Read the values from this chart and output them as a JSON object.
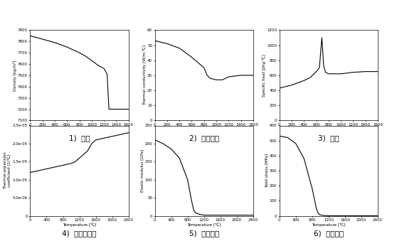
{
  "subplots": [
    {
      "label": "1)  밀도",
      "xlabel": "Temperature [℃]",
      "ylabel": "Density [kg/m³]",
      "xlim": [
        0,
        1600
      ],
      "ylim": [
        7100,
        7900
      ],
      "yticks": [
        7100,
        7200,
        7300,
        7400,
        7500,
        7600,
        7700,
        7800,
        7900
      ],
      "xticks": [
        0,
        200,
        400,
        600,
        800,
        1000,
        1200,
        1400,
        1600
      ],
      "x": [
        0,
        200,
        400,
        600,
        800,
        900,
        1000,
        1100,
        1200,
        1250,
        1280,
        1350,
        1400,
        1500,
        1600
      ],
      "y": [
        7850,
        7820,
        7790,
        7750,
        7700,
        7670,
        7630,
        7590,
        7560,
        7510,
        7200,
        7200,
        7200,
        7200,
        7200
      ]
    },
    {
      "label": "2)  열전도도",
      "xlabel": "Temperature [℃]",
      "ylabel": "Thermal conductivity [W/m·℃]",
      "xlim": [
        0,
        1600
      ],
      "ylim": [
        0,
        60
      ],
      "yticks": [
        0,
        10,
        20,
        30,
        40,
        50,
        60
      ],
      "xticks": [
        0,
        200,
        400,
        600,
        800,
        1000,
        1200,
        1400,
        1600
      ],
      "x": [
        0,
        100,
        200,
        400,
        600,
        800,
        850,
        900,
        1000,
        1100,
        1200,
        1400,
        1600
      ],
      "y": [
        53,
        52,
        51,
        48,
        42,
        35,
        30,
        28,
        27,
        27,
        29,
        30,
        30
      ]
    },
    {
      "label": "3)  비열",
      "xlabel": "Temperature [℃]",
      "ylabel": "Specific heat [J/kg·℃]",
      "xlim": [
        0,
        1600
      ],
      "ylim": [
        0,
        1200
      ],
      "yticks": [
        0,
        200,
        400,
        600,
        800,
        1000,
        1200
      ],
      "xticks": [
        0,
        200,
        400,
        600,
        800,
        1000,
        1200,
        1400,
        1600
      ],
      "x": [
        0,
        200,
        400,
        500,
        600,
        650,
        690,
        720,
        750,
        800,
        1000,
        1200,
        1400,
        1600
      ],
      "y": [
        430,
        470,
        530,
        570,
        650,
        700,
        1100,
        720,
        640,
        620,
        620,
        640,
        650,
        650
      ]
    },
    {
      "label": "4)  열확산계수",
      "xlabel": "Temperature [℃]",
      "ylabel": "Thermal expansion\ncoefficient [1/℃]",
      "xlim": [
        0,
        2400
      ],
      "ylim": [
        0,
        2.5e-05
      ],
      "yticks_vals": [
        0,
        5e-06,
        1e-05,
        1.5e-05,
        2e-05,
        2.5e-05
      ],
      "yticks_labels": [
        "0",
        "5.0e-06",
        "1.0e-05",
        "1.5e-05",
        "2.0e-05",
        "2.5e-05"
      ],
      "xticks": [
        0,
        400,
        800,
        1200,
        1600,
        2000,
        2400
      ],
      "x": [
        0,
        200,
        400,
        600,
        800,
        1000,
        1100,
        1200,
        1400,
        1500,
        1600,
        2000,
        2400
      ],
      "y": [
        1.2e-05,
        1.25e-05,
        1.3e-05,
        1.35e-05,
        1.4e-05,
        1.45e-05,
        1.5e-05,
        1.6e-05,
        1.8e-05,
        2e-05,
        2.1e-05,
        2.2e-05,
        2.3e-05
      ]
    },
    {
      "label": "5)  탄성계수",
      "xlabel": "Temperature [℃]",
      "ylabel": "Elastic modulus [GPa]",
      "xlim": [
        0,
        2400
      ],
      "ylim": [
        0,
        250
      ],
      "yticks": [
        0,
        50,
        100,
        150,
        200,
        250
      ],
      "xticks": [
        0,
        400,
        800,
        1200,
        1600,
        2000,
        2400
      ],
      "x": [
        0,
        200,
        400,
        600,
        800,
        900,
        950,
        1000,
        1100,
        1200,
        1400,
        2400
      ],
      "y": [
        210,
        200,
        185,
        160,
        100,
        40,
        15,
        8,
        4,
        2,
        2,
        2
      ]
    },
    {
      "label": "6)  항복응력",
      "xlabel": "Temperature [℃]",
      "ylabel": "Yield stress [MPa]",
      "xlim": [
        0,
        2400
      ],
      "ylim": [
        0,
        600
      ],
      "yticks": [
        0,
        100,
        200,
        300,
        400,
        500,
        600
      ],
      "xticks": [
        0,
        400,
        800,
        1200,
        1600,
        2000,
        2400
      ],
      "x": [
        0,
        200,
        400,
        600,
        800,
        900,
        950,
        1000,
        1100,
        1200,
        1400,
        2400
      ],
      "y": [
        530,
        520,
        480,
        380,
        180,
        50,
        15,
        6,
        2,
        1,
        1,
        1
      ]
    }
  ],
  "background_color": "#ffffff",
  "line_color": "#000000",
  "line_width": 0.8,
  "label_fontsize": 4.0,
  "tick_fontsize": 4.0,
  "caption_fontsize": 7.5
}
